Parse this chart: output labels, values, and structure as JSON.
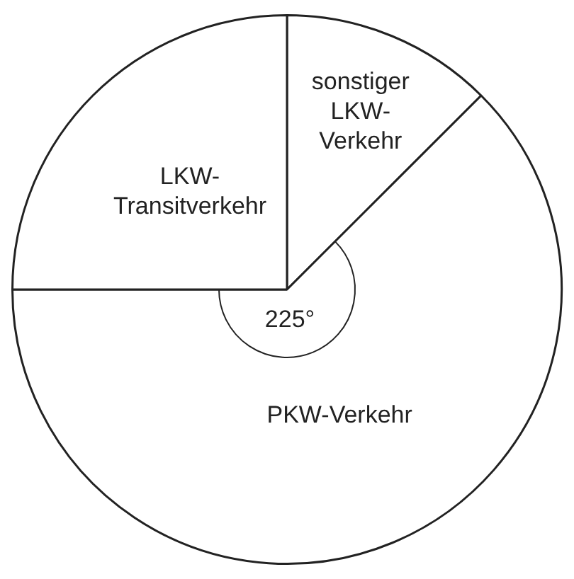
{
  "chart_data": {
    "type": "pie",
    "categories": [
      "sonstiger LKW-Verkehr",
      "PKW-Verkehr",
      "LKW-Transitverkehr"
    ],
    "values": [
      12.5,
      62.5,
      25
    ],
    "colors": [
      "#ffffff",
      "#ffffff",
      "#ffffff"
    ],
    "annotations": [
      "225°"
    ],
    "legend": false
  }
}
